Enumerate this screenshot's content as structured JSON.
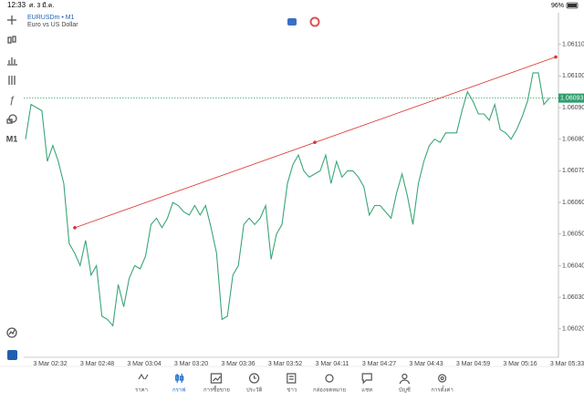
{
  "status_bar": {
    "time": "12:33",
    "date": "ศ. 3 มี.ค.",
    "battery": "96%"
  },
  "toolbar": {
    "timeframe": "M1"
  },
  "chart_data": {
    "type": "line",
    "title": "EURUSDm • M1",
    "subtitle": "Euro vs US Dollar",
    "color": "#3aa676",
    "values": [
      1.0608,
      1.06091,
      1.0609,
      1.06089,
      1.06073,
      1.06078,
      1.06073,
      1.06066,
      1.06047,
      1.06044,
      1.0604,
      1.06048,
      1.06037,
      1.0604,
      1.06024,
      1.06023,
      1.06021,
      1.06034,
      1.06027,
      1.06036,
      1.0604,
      1.06039,
      1.06043,
      1.06053,
      1.06055,
      1.06052,
      1.06055,
      1.0606,
      1.06059,
      1.06057,
      1.06056,
      1.06059,
      1.06056,
      1.06059,
      1.06052,
      1.06044,
      1.06023,
      1.06024,
      1.06037,
      1.0604,
      1.06053,
      1.06055,
      1.06053,
      1.06055,
      1.06059,
      1.06042,
      1.0605,
      1.06053,
      1.06066,
      1.06072,
      1.06075,
      1.0607,
      1.06068,
      1.06069,
      1.0607,
      1.06075,
      1.06066,
      1.06073,
      1.06068,
      1.0607,
      1.0607,
      1.06068,
      1.06065,
      1.06056,
      1.06059,
      1.06059,
      1.06057,
      1.06055,
      1.06063,
      1.06069,
      1.06062,
      1.06053,
      1.06066,
      1.06073,
      1.06078,
      1.0608,
      1.06079,
      1.06082,
      1.06082,
      1.06082,
      1.06089,
      1.06095,
      1.06092,
      1.06088,
      1.06088,
      1.06086,
      1.06091,
      1.06083,
      1.06082,
      1.0608,
      1.06083,
      1.06087,
      1.06092,
      1.06101,
      1.06101,
      1.06091,
      1.06093
    ],
    "ylim": [
      1.06011,
      1.0612
    ],
    "yticks": [
      {
        "value": 1.0602,
        "label": "1.06020"
      },
      {
        "value": 1.0603,
        "label": "1.06030"
      },
      {
        "value": 1.0604,
        "label": "1.06040"
      },
      {
        "value": 1.0605,
        "label": "1.06050"
      },
      {
        "value": 1.0606,
        "label": "1.06060"
      },
      {
        "value": 1.0607,
        "label": "1.06070"
      },
      {
        "value": 1.0608,
        "label": "1.06080"
      },
      {
        "value": 1.0609,
        "label": "1.06090"
      },
      {
        "value": 1.061,
        "label": "1.06100"
      },
      {
        "value": 1.0611,
        "label": "1.06110"
      }
    ],
    "time_labels": [
      "3 Mar 02:32",
      "3 Mar 02:48",
      "3 Mar 03:04",
      "3 Mar 03:20",
      "3 Mar 03:36",
      "3 Mar 03:52",
      "3 Mar 04:11",
      "3 Mar 04:27",
      "3 Mar 04:43",
      "3 Mar 04:59",
      "3 Mar 05:16",
      "3 Mar 05:33"
    ],
    "current_price": {
      "value": 1.06093,
      "label": "1.06093",
      "color": "#2e9e6e"
    },
    "trendline": {
      "values": [
        1.06052,
        1.06079,
        1.06106
      ],
      "color": "#e03030"
    }
  },
  "nav": {
    "items": [
      "ราคา",
      "กราฟ",
      "การซื้อขาย",
      "ประวัติ",
      "ข่าว",
      "กล่องจดหมาย",
      "แชท",
      "บัญชี",
      "การตั้งค่า"
    ]
  }
}
